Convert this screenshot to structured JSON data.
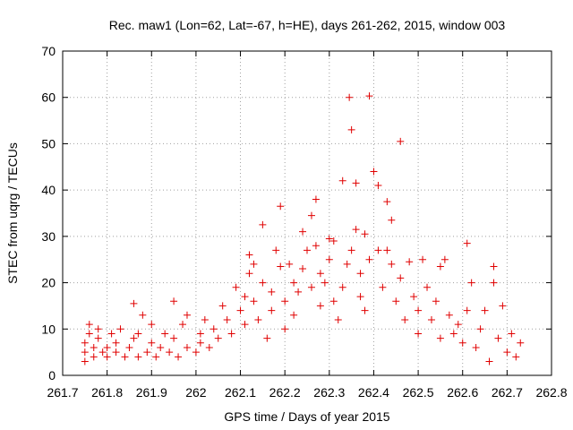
{
  "chart_data": {
    "type": "scatter",
    "title": "Rec. maw1 (Lon=62, Lat=-67, h=HE), days 261-262, 2015, window 003",
    "xlabel": "GPS time / Days of year 2015",
    "ylabel": "STEC from uqrg / TECUs",
    "xlim": [
      261.7,
      262.8
    ],
    "ylim": [
      0,
      70
    ],
    "xticks": [
      "261.7",
      "261.8",
      "261.9",
      "262",
      "262.1",
      "262.2",
      "262.3",
      "262.4",
      "262.5",
      "262.6",
      "262.7",
      "262.8"
    ],
    "yticks": [
      "0",
      "10",
      "20",
      "30",
      "40",
      "50",
      "60",
      "70"
    ],
    "grid": true,
    "marker": "+",
    "color": "#e00000",
    "series": [
      {
        "name": "STEC",
        "points": [
          [
            261.75,
            3
          ],
          [
            261.75,
            5
          ],
          [
            261.75,
            7
          ],
          [
            261.76,
            9
          ],
          [
            261.76,
            11
          ],
          [
            261.77,
            4
          ],
          [
            261.77,
            6
          ],
          [
            261.78,
            8
          ],
          [
            261.78,
            10
          ],
          [
            261.79,
            5
          ],
          [
            261.8,
            4
          ],
          [
            261.8,
            6
          ],
          [
            261.81,
            9
          ],
          [
            261.82,
            7
          ],
          [
            261.82,
            5
          ],
          [
            261.83,
            10
          ],
          [
            261.84,
            4
          ],
          [
            261.85,
            6
          ],
          [
            261.86,
            15.5
          ],
          [
            261.86,
            8
          ],
          [
            261.87,
            4
          ],
          [
            261.87,
            9
          ],
          [
            261.88,
            13
          ],
          [
            261.89,
            5
          ],
          [
            261.9,
            7
          ],
          [
            261.9,
            11
          ],
          [
            261.91,
            4
          ],
          [
            261.92,
            6
          ],
          [
            261.93,
            9
          ],
          [
            261.94,
            5
          ],
          [
            261.95,
            16
          ],
          [
            261.95,
            8
          ],
          [
            261.96,
            4
          ],
          [
            261.97,
            11
          ],
          [
            261.98,
            13
          ],
          [
            261.98,
            6
          ],
          [
            262,
            5
          ],
          [
            262.01,
            7
          ],
          [
            262.01,
            9
          ],
          [
            262.02,
            12
          ],
          [
            262.03,
            6
          ],
          [
            262.04,
            10
          ],
          [
            262.05,
            8
          ],
          [
            262.06,
            15
          ],
          [
            262.07,
            12
          ],
          [
            262.08,
            9
          ],
          [
            262.09,
            19
          ],
          [
            262.1,
            14
          ],
          [
            262.11,
            17
          ],
          [
            262.11,
            11
          ],
          [
            262.12,
            26
          ],
          [
            262.12,
            22
          ],
          [
            262.13,
            24
          ],
          [
            262.13,
            16
          ],
          [
            262.14,
            12
          ],
          [
            262.15,
            32.5
          ],
          [
            262.15,
            20
          ],
          [
            262.16,
            8
          ],
          [
            262.17,
            14
          ],
          [
            262.17,
            18
          ],
          [
            262.18,
            27
          ],
          [
            262.19,
            36.5
          ],
          [
            262.19,
            23.5
          ],
          [
            262.2,
            16
          ],
          [
            262.2,
            10
          ],
          [
            262.21,
            24
          ],
          [
            262.22,
            20
          ],
          [
            262.22,
            13
          ],
          [
            262.23,
            18
          ],
          [
            262.24,
            31
          ],
          [
            262.24,
            23
          ],
          [
            262.25,
            27
          ],
          [
            262.26,
            34.5
          ],
          [
            262.26,
            19
          ],
          [
            262.27,
            28
          ],
          [
            262.27,
            38
          ],
          [
            262.28,
            22
          ],
          [
            262.28,
            15
          ],
          [
            262.29,
            20
          ],
          [
            262.3,
            29.5
          ],
          [
            262.3,
            25
          ],
          [
            262.31,
            16
          ],
          [
            262.31,
            29
          ],
          [
            262.32,
            12
          ],
          [
            262.33,
            42
          ],
          [
            262.33,
            19
          ],
          [
            262.34,
            24
          ],
          [
            262.345,
            60
          ],
          [
            262.35,
            53
          ],
          [
            262.35,
            27
          ],
          [
            262.36,
            41.5
          ],
          [
            262.36,
            31.5
          ],
          [
            262.37,
            22
          ],
          [
            262.37,
            17
          ],
          [
            262.38,
            30.5
          ],
          [
            262.38,
            14
          ],
          [
            262.39,
            60.3
          ],
          [
            262.39,
            25
          ],
          [
            262.4,
            44
          ],
          [
            262.41,
            41
          ],
          [
            262.41,
            27
          ],
          [
            262.42,
            19
          ],
          [
            262.43,
            27
          ],
          [
            262.43,
            37.5
          ],
          [
            262.44,
            33.5
          ],
          [
            262.44,
            24
          ],
          [
            262.45,
            16
          ],
          [
            262.46,
            50.5
          ],
          [
            262.46,
            21
          ],
          [
            262.47,
            12
          ],
          [
            262.48,
            24.5
          ],
          [
            262.49,
            17
          ],
          [
            262.5,
            14
          ],
          [
            262.5,
            9
          ],
          [
            262.51,
            25
          ],
          [
            262.52,
            19
          ],
          [
            262.53,
            12
          ],
          [
            262.54,
            16
          ],
          [
            262.55,
            23.5
          ],
          [
            262.55,
            8
          ],
          [
            262.56,
            25
          ],
          [
            262.57,
            13
          ],
          [
            262.58,
            9
          ],
          [
            262.59,
            11
          ],
          [
            262.6,
            7
          ],
          [
            262.61,
            28.5
          ],
          [
            262.61,
            14
          ],
          [
            262.62,
            20
          ],
          [
            262.63,
            6
          ],
          [
            262.64,
            10
          ],
          [
            262.65,
            14
          ],
          [
            262.66,
            3
          ],
          [
            262.67,
            23.5
          ],
          [
            262.67,
            20
          ],
          [
            262.68,
            8
          ],
          [
            262.69,
            15
          ],
          [
            262.7,
            5
          ],
          [
            262.71,
            9
          ],
          [
            262.72,
            4
          ],
          [
            262.73,
            7
          ]
        ]
      }
    ]
  }
}
